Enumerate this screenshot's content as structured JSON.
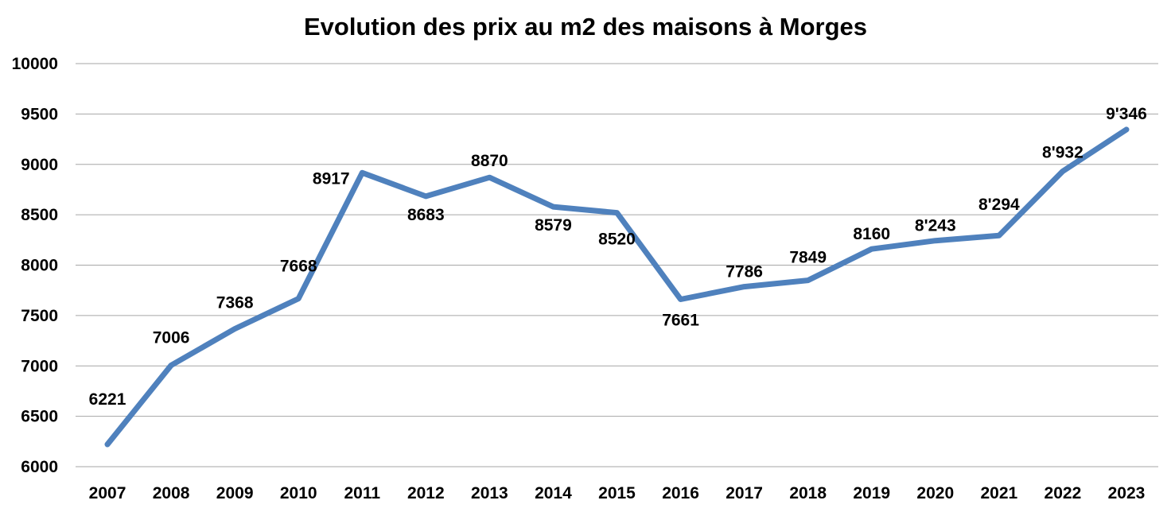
{
  "chart_data": {
    "type": "line",
    "title": "Evolution des prix au m2 des maisons à Morges",
    "xlabel": "",
    "ylabel": "",
    "categories": [
      "2007",
      "2008",
      "2009",
      "2010",
      "2011",
      "2012",
      "2013",
      "2014",
      "2015",
      "2016",
      "2017",
      "2018",
      "2019",
      "2020",
      "2021",
      "2022",
      "2023"
    ],
    "series": [
      {
        "values": [
          6221,
          7006,
          7368,
          7668,
          8917,
          8683,
          8870,
          8579,
          8520,
          7661,
          7786,
          7849,
          8160,
          8243,
          8294,
          8932,
          9346
        ],
        "data_labels": [
          "6221",
          "7006",
          "7368",
          "7668",
          "8917",
          "8683",
          "8870",
          "8579",
          "8520",
          "7661",
          "7786",
          "7849",
          "8160",
          "8'243",
          "8'294",
          "8'932",
          "9'346"
        ],
        "color": "#4f81bd"
      }
    ],
    "ylim": [
      6000,
      10000
    ],
    "yticks": [
      6000,
      6500,
      7000,
      7500,
      8000,
      8500,
      9000,
      9500,
      10000
    ],
    "grid": true,
    "legend": "none"
  }
}
